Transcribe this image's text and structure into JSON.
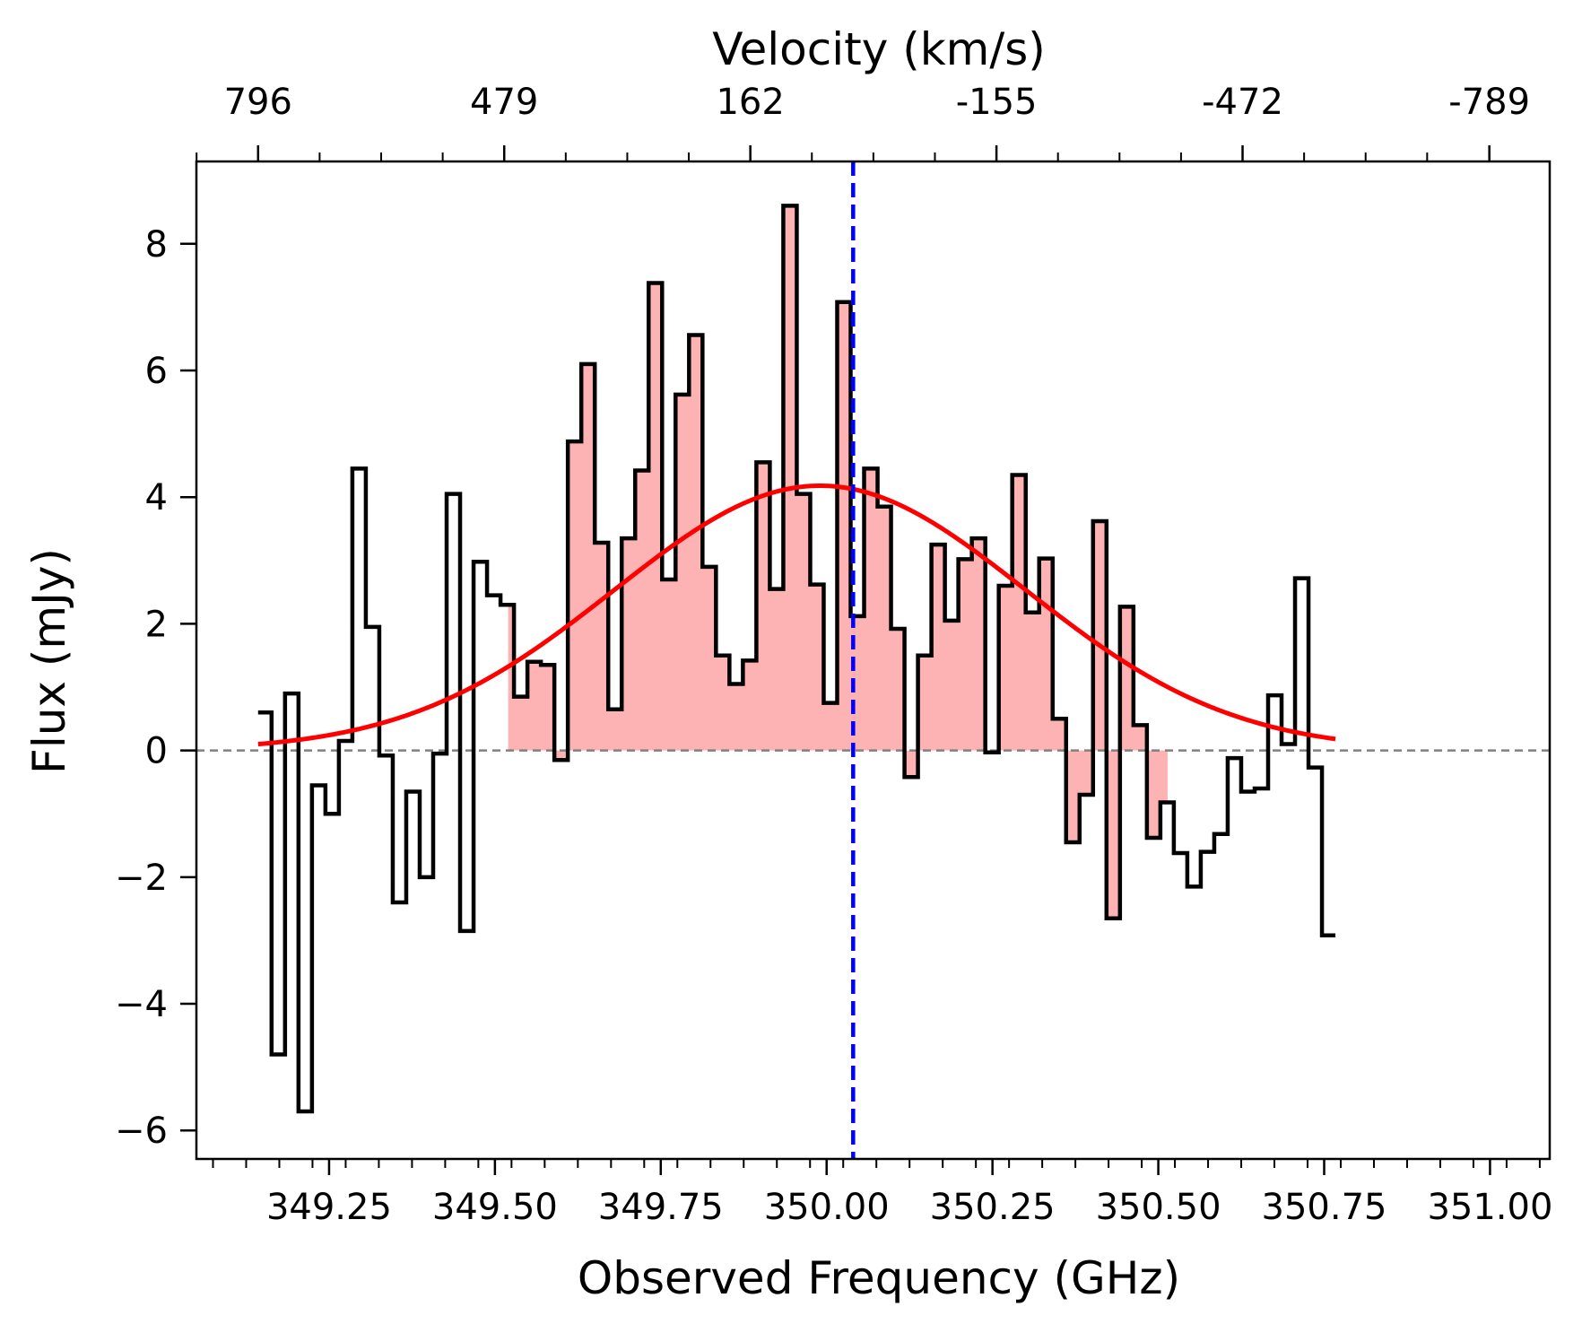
{
  "chart_data": {
    "type": "line",
    "title": "",
    "xlabel": "Observed Frequency (GHz)",
    "ylabel": "Flux (mJy)",
    "top_xlabel": "Velocity (km/s)",
    "xlim": [
      349.05,
      351.09
    ],
    "ylim": [
      -6.45,
      9.3
    ],
    "x_ticks": [
      349.25,
      349.5,
      349.75,
      350.0,
      350.25,
      350.5,
      350.75,
      351.0
    ],
    "x_tick_labels": [
      "349.25",
      "349.50",
      "349.75",
      "350.00",
      "350.25",
      "350.50",
      "350.75",
      "351.00"
    ],
    "y_ticks": [
      -6,
      -4,
      -2,
      0,
      2,
      4,
      6,
      8
    ],
    "y_tick_labels": [
      "−6",
      "−4",
      "−2",
      "0",
      "2",
      "4",
      "6",
      "8"
    ],
    "top_ticks_freq": [
      349.143,
      349.514,
      349.885,
      350.256,
      350.627,
      350.999
    ],
    "top_tick_labels": [
      "796",
      "479",
      "162",
      "-155",
      "-472",
      "-789"
    ],
    "step_bins": {
      "start": 349.143,
      "width": 0.0203,
      "values": [
        0.6,
        -4.8,
        0.9,
        -5.7,
        -0.55,
        -1.0,
        0.15,
        4.45,
        1.95,
        -0.08,
        -2.4,
        -0.65,
        -2.0,
        -0.05,
        4.05,
        -2.85,
        2.98,
        2.45,
        2.3,
        0.85,
        1.4,
        1.35,
        -0.15,
        4.88,
        6.1,
        3.28,
        0.65,
        3.35,
        4.42,
        7.38,
        2.7,
        5.62,
        6.56,
        2.9,
        1.5,
        1.05,
        1.42,
        4.55,
        2.55,
        8.6,
        4.05,
        2.62,
        0.75,
        7.08,
        2.12,
        4.45,
        3.85,
        1.92,
        -0.42,
        1.5,
        3.25,
        2.05,
        3.02,
        3.35,
        -0.03,
        2.6,
        4.35,
        2.18,
        3.03,
        0.5,
        -1.45,
        -0.7,
        3.62,
        -2.65,
        2.27,
        0.4,
        -1.38,
        -0.82,
        -1.62,
        -2.15,
        -1.6,
        -1.32,
        -0.12,
        -0.65,
        -0.6,
        0.87,
        0.1,
        2.72,
        -0.27,
        -2.92
      ]
    },
    "fill_range": [
      349.52,
      350.514
    ],
    "gaussian_fit": {
      "amplitude": 4.18,
      "center": 349.99,
      "sigma": 0.31
    },
    "line_center_freq": 350.04,
    "colors": {
      "spectrum": "#000000",
      "fill": "#fdb3b3",
      "fit": "#ff0000",
      "center_line": "#0000ff",
      "zero_line": "#808080"
    }
  }
}
